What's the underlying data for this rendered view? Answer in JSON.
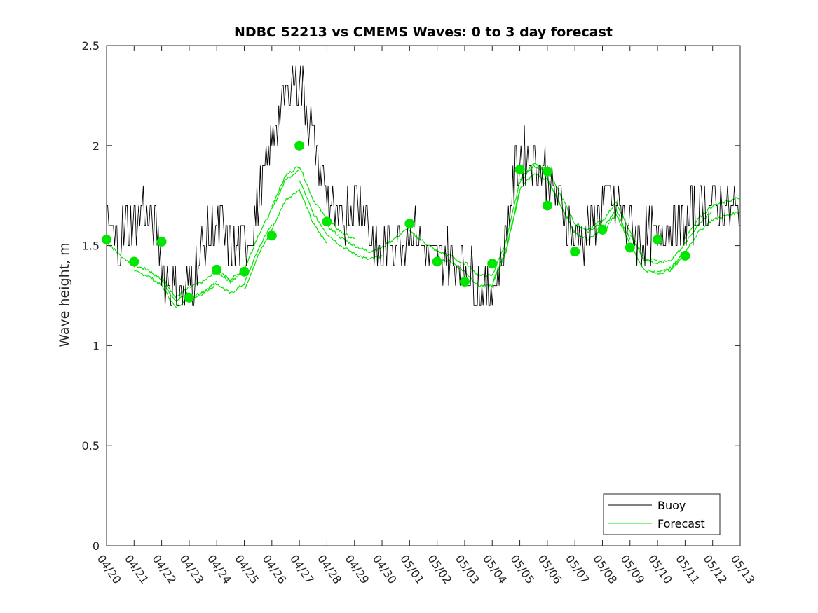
{
  "chart_data": {
    "type": "line",
    "title": "NDBC 52213 vs CMEMS Waves: 0 to 3 day forecast",
    "xlabel": "",
    "ylabel": "Wave height, m",
    "xlim": [
      0,
      23
    ],
    "ylim": [
      0,
      2.5
    ],
    "yticks": [
      "0",
      "0.5",
      "1",
      "1.5",
      "2",
      "2.5"
    ],
    "ytick_values": [
      0,
      0.5,
      1,
      1.5,
      2,
      2.5
    ],
    "xtick_labels": [
      "04/20",
      "04/21",
      "04/22",
      "04/23",
      "04/24",
      "04/25",
      "04/26",
      "04/27",
      "04/28",
      "04/29",
      "04/30",
      "05/01",
      "05/02",
      "05/03",
      "05/04",
      "05/05",
      "05/06",
      "05/07",
      "05/08",
      "05/09",
      "05/10",
      "05/11",
      "05/12",
      "05/13"
    ],
    "grid": false,
    "legend": {
      "position": "bottom-right",
      "entries": [
        "Buoy",
        "Forecast"
      ]
    },
    "colors": {
      "buoy": "#000000",
      "forecast": "#00e600",
      "axis": "#262626"
    },
    "buoy_keypoints": [
      [
        0.0,
        1.6
      ],
      [
        0.2,
        1.55
      ],
      [
        0.4,
        1.5
      ],
      [
        0.7,
        1.6
      ],
      [
        1.0,
        1.65
      ],
      [
        1.3,
        1.7
      ],
      [
        1.6,
        1.6
      ],
      [
        1.9,
        1.5
      ],
      [
        2.1,
        1.35
      ],
      [
        2.4,
        1.3
      ],
      [
        2.7,
        1.25
      ],
      [
        3.0,
        1.3
      ],
      [
        3.3,
        1.4
      ],
      [
        3.6,
        1.5
      ],
      [
        3.9,
        1.6
      ],
      [
        4.1,
        1.6
      ],
      [
        4.3,
        1.55
      ],
      [
        4.6,
        1.45
      ],
      [
        4.9,
        1.5
      ],
      [
        5.2,
        1.55
      ],
      [
        5.5,
        1.7
      ],
      [
        5.8,
        1.9
      ],
      [
        6.1,
        2.1
      ],
      [
        6.4,
        2.2
      ],
      [
        6.7,
        2.3
      ],
      [
        7.0,
        2.35
      ],
      [
        7.2,
        2.2
      ],
      [
        7.5,
        2.05
      ],
      [
        7.8,
        1.85
      ],
      [
        8.1,
        1.7
      ],
      [
        8.4,
        1.6
      ],
      [
        8.7,
        1.65
      ],
      [
        9.0,
        1.75
      ],
      [
        9.3,
        1.7
      ],
      [
        9.6,
        1.55
      ],
      [
        9.9,
        1.45
      ],
      [
        10.2,
        1.5
      ],
      [
        10.5,
        1.55
      ],
      [
        10.8,
        1.55
      ],
      [
        11.1,
        1.6
      ],
      [
        11.4,
        1.55
      ],
      [
        11.7,
        1.45
      ],
      [
        12.0,
        1.45
      ],
      [
        12.3,
        1.45
      ],
      [
        12.6,
        1.45
      ],
      [
        12.9,
        1.4
      ],
      [
        13.2,
        1.35
      ],
      [
        13.5,
        1.3
      ],
      [
        13.8,
        1.28
      ],
      [
        14.1,
        1.32
      ],
      [
        14.4,
        1.45
      ],
      [
        14.7,
        1.75
      ],
      [
        15.0,
        1.95
      ],
      [
        15.3,
        1.95
      ],
      [
        15.6,
        1.92
      ],
      [
        15.9,
        1.88
      ],
      [
        16.2,
        1.78
      ],
      [
        16.5,
        1.7
      ],
      [
        16.8,
        1.6
      ],
      [
        17.1,
        1.55
      ],
      [
        17.4,
        1.55
      ],
      [
        17.7,
        1.62
      ],
      [
        18.0,
        1.7
      ],
      [
        18.3,
        1.75
      ],
      [
        18.6,
        1.68
      ],
      [
        18.9,
        1.6
      ],
      [
        19.2,
        1.55
      ],
      [
        19.5,
        1.52
      ],
      [
        19.8,
        1.55
      ],
      [
        20.1,
        1.55
      ],
      [
        20.4,
        1.6
      ],
      [
        20.7,
        1.6
      ],
      [
        21.0,
        1.58
      ],
      [
        21.3,
        1.65
      ],
      [
        21.6,
        1.7
      ],
      [
        21.9,
        1.7
      ],
      [
        22.2,
        1.72
      ],
      [
        22.5,
        1.7
      ],
      [
        22.8,
        1.68
      ],
      [
        23.0,
        1.7
      ]
    ],
    "forecast_base": [
      [
        0.0,
        1.52
      ],
      [
        0.5,
        1.45
      ],
      [
        1.0,
        1.4
      ],
      [
        1.5,
        1.38
      ],
      [
        2.0,
        1.33
      ],
      [
        2.5,
        1.22
      ],
      [
        3.0,
        1.27
      ],
      [
        3.5,
        1.3
      ],
      [
        4.0,
        1.35
      ],
      [
        4.5,
        1.3
      ],
      [
        5.0,
        1.35
      ],
      [
        5.5,
        1.52
      ],
      [
        6.0,
        1.65
      ],
      [
        6.5,
        1.8
      ],
      [
        7.0,
        1.85
      ],
      [
        7.5,
        1.68
      ],
      [
        8.0,
        1.58
      ],
      [
        8.5,
        1.52
      ],
      [
        9.0,
        1.48
      ],
      [
        9.5,
        1.45
      ],
      [
        10.0,
        1.47
      ],
      [
        10.5,
        1.52
      ],
      [
        11.0,
        1.57
      ],
      [
        11.5,
        1.52
      ],
      [
        12.0,
        1.47
      ],
      [
        12.5,
        1.45
      ],
      [
        13.0,
        1.4
      ],
      [
        13.5,
        1.33
      ],
      [
        14.0,
        1.33
      ],
      [
        14.5,
        1.5
      ],
      [
        15.0,
        1.8
      ],
      [
        15.5,
        1.88
      ],
      [
        16.0,
        1.85
      ],
      [
        16.5,
        1.72
      ],
      [
        17.0,
        1.58
      ],
      [
        17.5,
        1.55
      ],
      [
        18.0,
        1.6
      ],
      [
        18.5,
        1.7
      ],
      [
        19.0,
        1.55
      ],
      [
        19.5,
        1.42
      ],
      [
        20.0,
        1.4
      ],
      [
        20.5,
        1.42
      ],
      [
        21.0,
        1.5
      ],
      [
        21.5,
        1.6
      ],
      [
        22.0,
        1.66
      ],
      [
        22.5,
        1.68
      ],
      [
        23.0,
        1.7
      ]
    ],
    "forecast_runs": [
      {
        "start": 0.0,
        "end": 3.0,
        "offset": 0.0
      },
      {
        "start": 1.0,
        "end": 4.0,
        "offset": -0.03
      },
      {
        "start": 2.0,
        "end": 5.0,
        "offset": 0.02
      },
      {
        "start": 3.0,
        "end": 6.0,
        "offset": -0.04
      },
      {
        "start": 4.0,
        "end": 7.0,
        "offset": 0.03
      },
      {
        "start": 5.0,
        "end": 8.0,
        "offset": -0.07
      },
      {
        "start": 6.0,
        "end": 9.0,
        "offset": 0.05
      },
      {
        "start": 7.0,
        "end": 10.0,
        "offset": -0.02
      },
      {
        "start": 8.0,
        "end": 11.0,
        "offset": 0.02
      },
      {
        "start": 11.0,
        "end": 13.0,
        "offset": 0.0
      },
      {
        "start": 12.0,
        "end": 15.0,
        "offset": -0.03
      },
      {
        "start": 13.0,
        "end": 16.0,
        "offset": 0.02
      },
      {
        "start": 14.0,
        "end": 17.0,
        "offset": -0.02
      },
      {
        "start": 15.0,
        "end": 18.0,
        "offset": 0.03
      },
      {
        "start": 16.0,
        "end": 19.0,
        "offset": -0.02
      },
      {
        "start": 17.0,
        "end": 20.0,
        "offset": 0.02
      },
      {
        "start": 18.0,
        "end": 21.0,
        "offset": -0.04
      },
      {
        "start": 19.0,
        "end": 22.0,
        "offset": 0.01
      },
      {
        "start": 20.0,
        "end": 23.0,
        "offset": -0.03
      },
      {
        "start": 21.0,
        "end": 23.0,
        "offset": 0.04
      }
    ],
    "forecast_points": [
      [
        0,
        1.53
      ],
      [
        1,
        1.42
      ],
      [
        2,
        1.52
      ],
      [
        3,
        1.24
      ],
      [
        4,
        1.38
      ],
      [
        5,
        1.37
      ],
      [
        6,
        1.55
      ],
      [
        7,
        2.0
      ],
      [
        8,
        1.62
      ],
      [
        11,
        1.61
      ],
      [
        12,
        1.42
      ],
      [
        13,
        1.32
      ],
      [
        14,
        1.41
      ],
      [
        15,
        1.88
      ],
      [
        16,
        1.87
      ],
      [
        16,
        1.7
      ],
      [
        17,
        1.47
      ],
      [
        18,
        1.58
      ],
      [
        19,
        1.49
      ],
      [
        20,
        1.53
      ],
      [
        21,
        1.45
      ]
    ]
  }
}
